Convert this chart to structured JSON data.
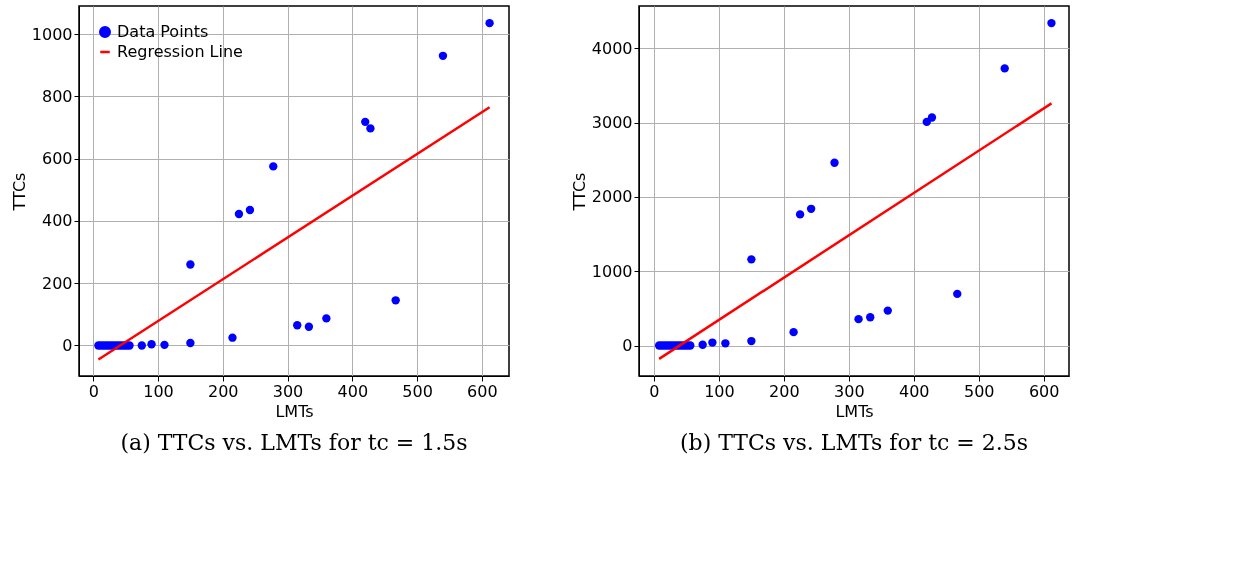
{
  "chart_data": [
    {
      "type": "scatter",
      "title": "(a) TTCs vs. LMTs for tc = 1.5s",
      "xlabel": "LMTs",
      "ylabel": "TTCs",
      "xlim": [
        -22,
        642
      ],
      "ylim": [
        -98,
        1090
      ],
      "xticks": [
        0,
        100,
        200,
        300,
        400,
        500,
        600
      ],
      "yticks": [
        0,
        200,
        400,
        600,
        800,
        1000
      ],
      "grid": true,
      "legend": "top left",
      "series": [
        {
          "name": "Data Points",
          "marker": "circle",
          "color": "#0000ff",
          "x": [
            8,
            12,
            16,
            20,
            24,
            28,
            32,
            36,
            40,
            44,
            48,
            52,
            56,
            75,
            90,
            110,
            150,
            150,
            215,
            225,
            242,
            278,
            315,
            333,
            360,
            420,
            428,
            467,
            540,
            612
          ],
          "values": [
            0,
            0,
            0,
            0,
            0,
            0,
            0,
            0,
            0,
            0,
            0,
            0,
            0,
            0,
            4,
            2,
            8,
            260,
            25,
            422,
            435,
            575,
            65,
            60,
            87,
            718,
            697,
            145,
            930,
            1035
          ]
        },
        {
          "name": "Regression Line",
          "type": "line",
          "line_style": "solid",
          "color": "#ff0000",
          "x": [
            8,
            612
          ],
          "values": [
            -45,
            765
          ]
        }
      ]
    },
    {
      "type": "scatter",
      "title": "(b) TTCs vs. LMTs for tc = 2.5s",
      "xlabel": "LMTs",
      "ylabel": "TTCs",
      "xlim": [
        -23,
        639
      ],
      "ylim": [
        -410,
        4570
      ],
      "xticks": [
        0,
        100,
        200,
        300,
        400,
        500,
        600
      ],
      "yticks": [
        0,
        1000,
        2000,
        3000,
        4000
      ],
      "grid": true,
      "legend": "top left",
      "series": [
        {
          "name": "Data Points",
          "marker": "circle",
          "color": "#0000ff",
          "x": [
            8,
            12,
            16,
            20,
            24,
            28,
            32,
            36,
            40,
            44,
            48,
            52,
            56,
            75,
            90,
            110,
            150,
            150,
            215,
            225,
            242,
            278,
            315,
            333,
            360,
            420,
            428,
            467,
            540,
            612
          ],
          "values": [
            0,
            0,
            0,
            0,
            0,
            0,
            0,
            0,
            0,
            0,
            0,
            0,
            0,
            10,
            40,
            30,
            60,
            1160,
            180,
            1765,
            1840,
            2460,
            355,
            380,
            470,
            3010,
            3070,
            695,
            3730,
            4340
          ]
        },
        {
          "name": "Regression Line",
          "type": "line",
          "line_style": "solid",
          "color": "#ff0000",
          "x": [
            8,
            612
          ],
          "values": [
            -180,
            3260
          ]
        }
      ]
    }
  ]
}
